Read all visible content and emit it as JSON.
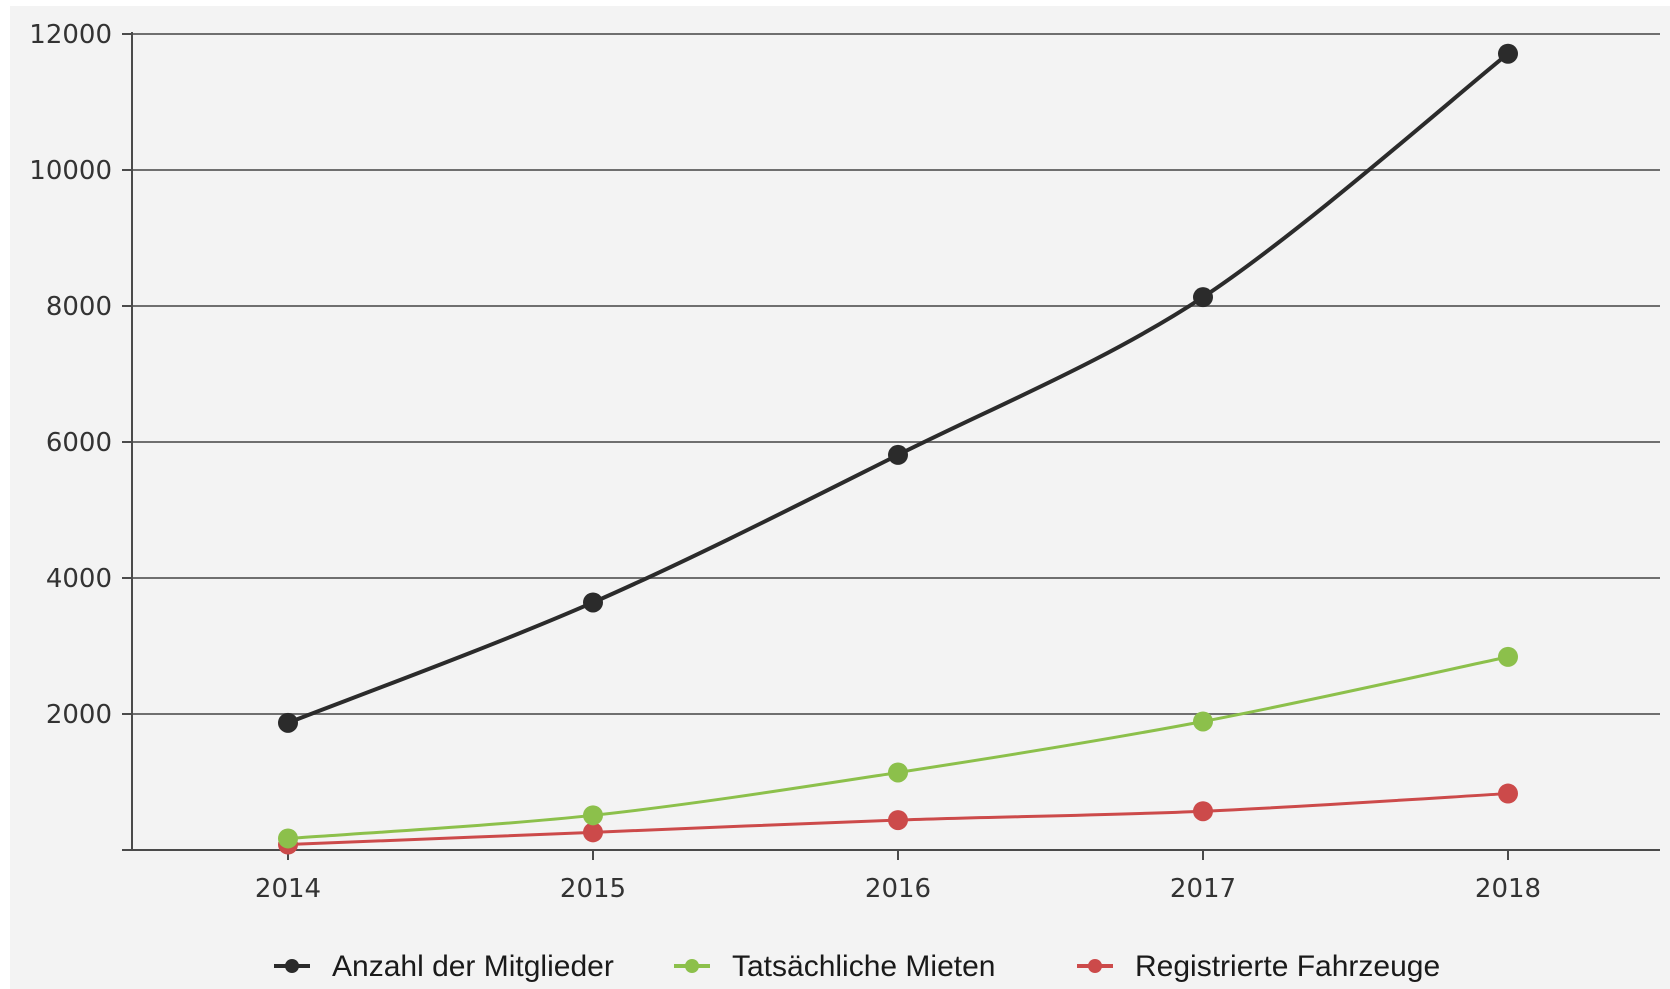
{
  "chart_data": {
    "type": "line",
    "title": "",
    "xlabel": "",
    "ylabel": "",
    "x": [
      "2014",
      "2015",
      "2016",
      "2017",
      "2018"
    ],
    "ylim": [
      0,
      12000
    ],
    "yticks": [
      "2000",
      "4000",
      "6000",
      "8000",
      "10000",
      "12000"
    ],
    "grid": true,
    "legend_position": "bottom",
    "series": [
      {
        "name": "Anzahl der Mitglieder",
        "color": "#2b2b2b",
        "values": [
          1870,
          3640,
          5810,
          8130,
          11710
        ]
      },
      {
        "name": "Tatsächliche Mieten",
        "color": "#8cc04b",
        "values": [
          170,
          510,
          1140,
          1890,
          2840
        ]
      },
      {
        "name": "Registrierte Fahrzeuge",
        "color": "#cc4a4a",
        "values": [
          80,
          260,
          440,
          570,
          830
        ]
      }
    ]
  }
}
